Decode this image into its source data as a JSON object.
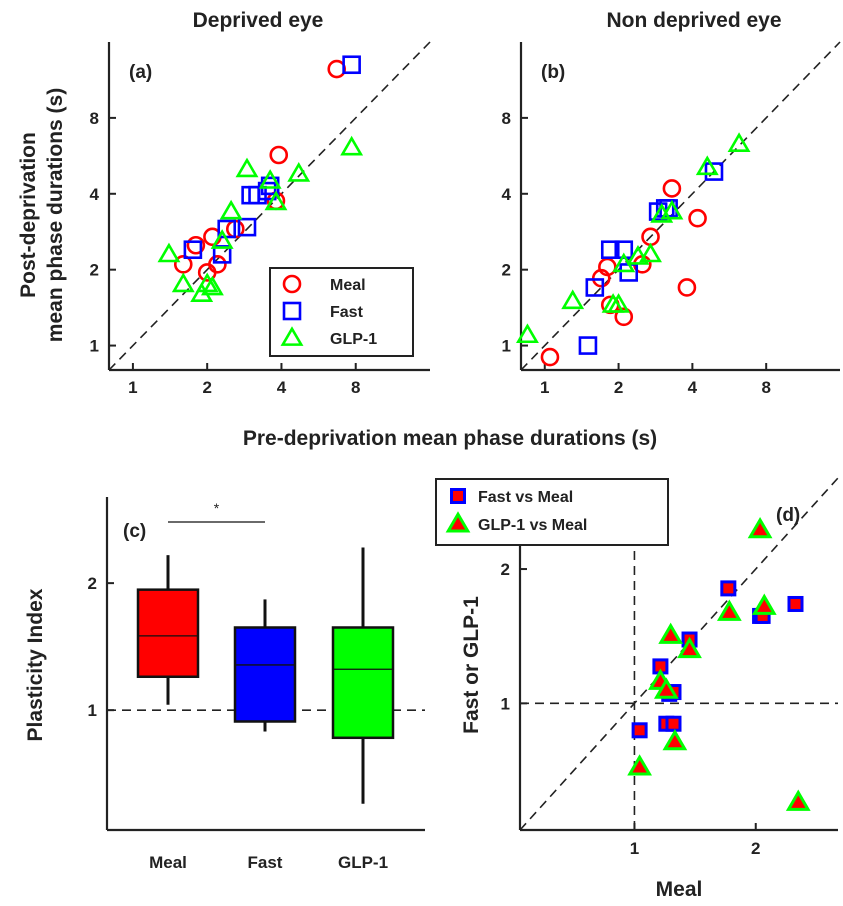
{
  "figure": {
    "xlabel_shared": "Pre-deprivation mean phase durations (s)",
    "ylabel_shared": [
      "Post-deprivation",
      "mean phase durations (s)"
    ]
  },
  "chart_data": [
    {
      "id": "a",
      "panel_label": "(a)",
      "type": "scatter",
      "title": "Deprived eye",
      "xscale": "log2",
      "yscale": "log2",
      "xlim": [
        0.8,
        16
      ],
      "ylim": [
        0.8,
        16
      ],
      "xticks": [
        "1",
        "2",
        "4",
        "8"
      ],
      "yticks": [
        "1",
        "2",
        "4",
        "8"
      ],
      "reference_line": "y = x",
      "legend": {
        "position": "bottom-right",
        "entries": [
          "Meal",
          "Fast",
          "GLP-1"
        ]
      },
      "series": [
        {
          "name": "Meal",
          "marker": "circle",
          "color": "#ff0000",
          "points": [
            [
              1.6,
              2.1
            ],
            [
              1.8,
              2.5
            ],
            [
              2.0,
              1.95
            ],
            [
              2.1,
              2.7
            ],
            [
              2.2,
              2.1
            ],
            [
              2.6,
              2.9
            ],
            [
              3.8,
              3.75
            ],
            [
              3.9,
              5.7
            ],
            [
              6.7,
              12.5
            ]
          ]
        },
        {
          "name": "Fast",
          "marker": "square",
          "color": "#0000ff",
          "points": [
            [
              1.75,
              2.4
            ],
            [
              2.3,
              2.3
            ],
            [
              2.4,
              2.9
            ],
            [
              2.9,
              2.95
            ],
            [
              3.0,
              3.95
            ],
            [
              3.2,
              3.95
            ],
            [
              3.5,
              4.1
            ],
            [
              3.6,
              4.3
            ],
            [
              7.7,
              13.0
            ]
          ]
        },
        {
          "name": "GLP-1",
          "marker": "triangle",
          "color": "#00ff00",
          "points": [
            [
              1.4,
              2.3
            ],
            [
              1.6,
              1.75
            ],
            [
              1.9,
              1.6
            ],
            [
              2.0,
              1.75
            ],
            [
              2.1,
              1.7
            ],
            [
              2.3,
              2.6
            ],
            [
              2.5,
              3.4
            ],
            [
              2.9,
              5.0
            ],
            [
              3.6,
              4.5
            ],
            [
              3.8,
              3.7
            ],
            [
              4.7,
              4.8
            ],
            [
              7.7,
              6.1
            ]
          ]
        }
      ]
    },
    {
      "id": "b",
      "panel_label": "(b)",
      "type": "scatter",
      "title": "Non deprived eye",
      "xscale": "log2",
      "yscale": "log2",
      "xlim": [
        0.8,
        16
      ],
      "ylim": [
        0.8,
        16
      ],
      "xticks": [
        "1",
        "2",
        "4",
        "8"
      ],
      "yticks": [
        "1",
        "2",
        "4",
        "8"
      ],
      "reference_line": "y = x",
      "series": [
        {
          "name": "Meal",
          "marker": "circle",
          "color": "#ff0000",
          "points": [
            [
              1.05,
              0.9
            ],
            [
              1.7,
              1.85
            ],
            [
              1.8,
              2.05
            ],
            [
              1.85,
              1.45
            ],
            [
              2.1,
              1.3
            ],
            [
              2.5,
              2.1
            ],
            [
              2.7,
              2.7
            ],
            [
              3.3,
              4.2
            ],
            [
              3.8,
              1.7
            ],
            [
              4.2,
              3.2
            ]
          ]
        },
        {
          "name": "Fast",
          "marker": "square",
          "color": "#0000ff",
          "points": [
            [
              1.5,
              1.0
            ],
            [
              1.6,
              1.7
            ],
            [
              1.85,
              2.4
            ],
            [
              2.1,
              2.4
            ],
            [
              2.2,
              1.95
            ],
            [
              2.9,
              3.4
            ],
            [
              3.1,
              3.5
            ],
            [
              3.2,
              3.5
            ],
            [
              4.9,
              4.9
            ]
          ]
        },
        {
          "name": "GLP-1",
          "marker": "triangle",
          "color": "#00ff00",
          "points": [
            [
              0.85,
              1.1
            ],
            [
              1.3,
              1.5
            ],
            [
              1.9,
              1.45
            ],
            [
              2.0,
              1.45
            ],
            [
              2.1,
              2.1
            ],
            [
              2.4,
              2.25
            ],
            [
              2.7,
              2.3
            ],
            [
              3.0,
              3.3
            ],
            [
              3.3,
              3.4
            ],
            [
              4.6,
              5.1
            ],
            [
              6.2,
              6.3
            ]
          ]
        }
      ]
    },
    {
      "id": "c",
      "panel_label": "(c)",
      "type": "box",
      "ylabel": "Plasticity Index",
      "yscale": "log",
      "ylim": [
        0.52,
        3.2
      ],
      "yticks": [
        "1",
        "2"
      ],
      "reference_line": "y = 1",
      "significance": "*",
      "significance_between": [
        "Meal",
        "Fast"
      ],
      "categories": [
        "Meal",
        "Fast",
        "GLP-1"
      ],
      "boxes": [
        {
          "name": "Meal",
          "color": "#ff0000",
          "whisker_low": 1.03,
          "q1": 1.2,
          "median": 1.5,
          "q3": 1.93,
          "whisker_high": 2.33
        },
        {
          "name": "Fast",
          "color": "#0000ff",
          "whisker_low": 0.89,
          "q1": 0.94,
          "median": 1.28,
          "q3": 1.57,
          "whisker_high": 1.83
        },
        {
          "name": "GLP-1",
          "color": "#00ff00",
          "whisker_low": 0.6,
          "q1": 0.86,
          "median": 1.25,
          "q3": 1.57,
          "whisker_high": 2.43
        }
      ]
    },
    {
      "id": "d",
      "panel_label": "(d)",
      "type": "scatter",
      "xlabel": "Meal",
      "ylabel": "Fast or GLP-1",
      "xscale": "log",
      "yscale": "log",
      "xlim": [
        0.52,
        3.2
      ],
      "ylim": [
        0.52,
        3.2
      ],
      "xticks": [
        "1",
        "2"
      ],
      "yticks": [
        "1",
        "2"
      ],
      "reference_lines": [
        "y = x",
        "x = 1",
        "y = 1"
      ],
      "legend": {
        "position": "top-center",
        "entries": [
          "Fast vs Meal",
          "GLP-1 vs Meal"
        ]
      },
      "series": [
        {
          "name": "Fast vs Meal",
          "marker": "square",
          "edge": "#0000ff",
          "face": "#ff0000",
          "points": [
            [
              1.03,
              0.87
            ],
            [
              1.16,
              1.21
            ],
            [
              1.2,
              0.9
            ],
            [
              1.22,
              1.05
            ],
            [
              1.25,
              1.06
            ],
            [
              1.25,
              0.9
            ],
            [
              1.37,
              1.39
            ],
            [
              1.71,
              1.81
            ],
            [
              2.05,
              1.57
            ],
            [
              2.08,
              1.57
            ],
            [
              2.51,
              1.67
            ]
          ]
        },
        {
          "name": "GLP-1 vs Meal",
          "marker": "triangle",
          "edge": "#00ff00",
          "face": "#ff0000",
          "points": [
            [
              1.03,
              0.72
            ],
            [
              1.16,
              1.12
            ],
            [
              1.2,
              1.07
            ],
            [
              1.23,
              1.42
            ],
            [
              1.26,
              0.82
            ],
            [
              1.37,
              1.32
            ],
            [
              1.72,
              1.6
            ],
            [
              2.05,
              2.45
            ],
            [
              2.1,
              1.65
            ],
            [
              2.55,
              0.6
            ]
          ]
        }
      ]
    }
  ]
}
